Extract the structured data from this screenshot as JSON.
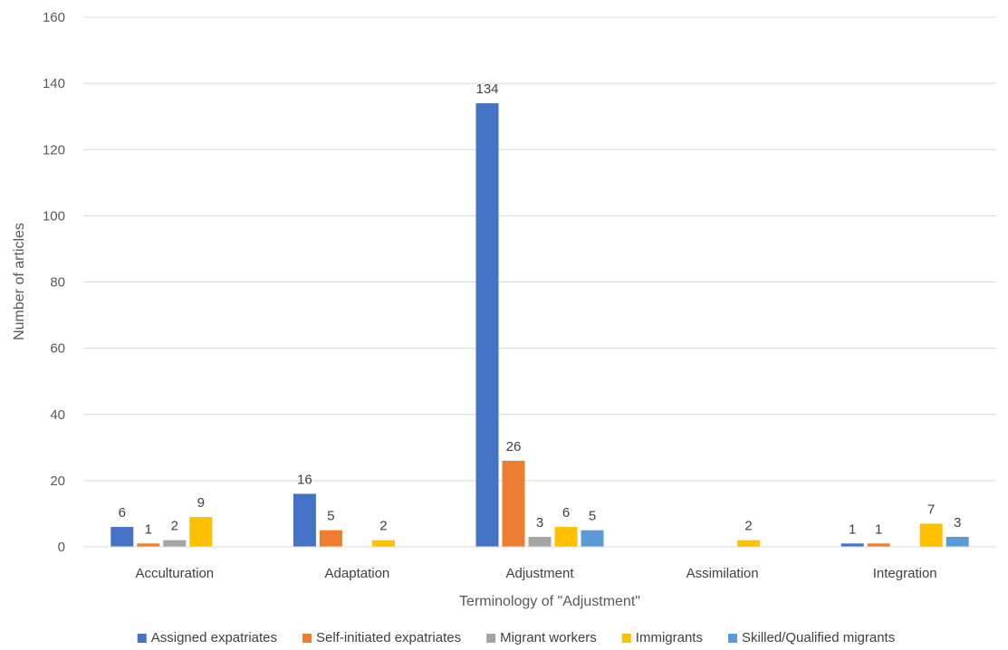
{
  "chart_data": {
    "type": "bar",
    "title": "",
    "xlabel": "Terminology of \"Adjustment\"",
    "ylabel": "Number of articles",
    "ylim": [
      0,
      160
    ],
    "yticks": [
      0,
      20,
      40,
      60,
      80,
      100,
      120,
      140,
      160
    ],
    "grid": "horizontal",
    "legend_position": "bottom",
    "categories": [
      "Acculturation",
      "Adaptation",
      "Adjustment",
      "Assimilation",
      "Integration"
    ],
    "series": [
      {
        "name": "Assigned expatriates",
        "color": "#4472C4",
        "values": [
          6,
          16,
          134,
          0,
          1
        ]
      },
      {
        "name": "Self-initiated expatriates",
        "color": "#ED7D31",
        "values": [
          1,
          5,
          26,
          0,
          1
        ]
      },
      {
        "name": "Migrant workers",
        "color": "#A5A5A5",
        "values": [
          2,
          0,
          3,
          0,
          0
        ]
      },
      {
        "name": "Immigrants",
        "color": "#FFC000",
        "values": [
          9,
          2,
          6,
          2,
          7
        ]
      },
      {
        "name": "Skilled/Qualified migrants",
        "color": "#5B9BD5",
        "values": [
          0,
          0,
          5,
          0,
          3
        ]
      }
    ]
  }
}
